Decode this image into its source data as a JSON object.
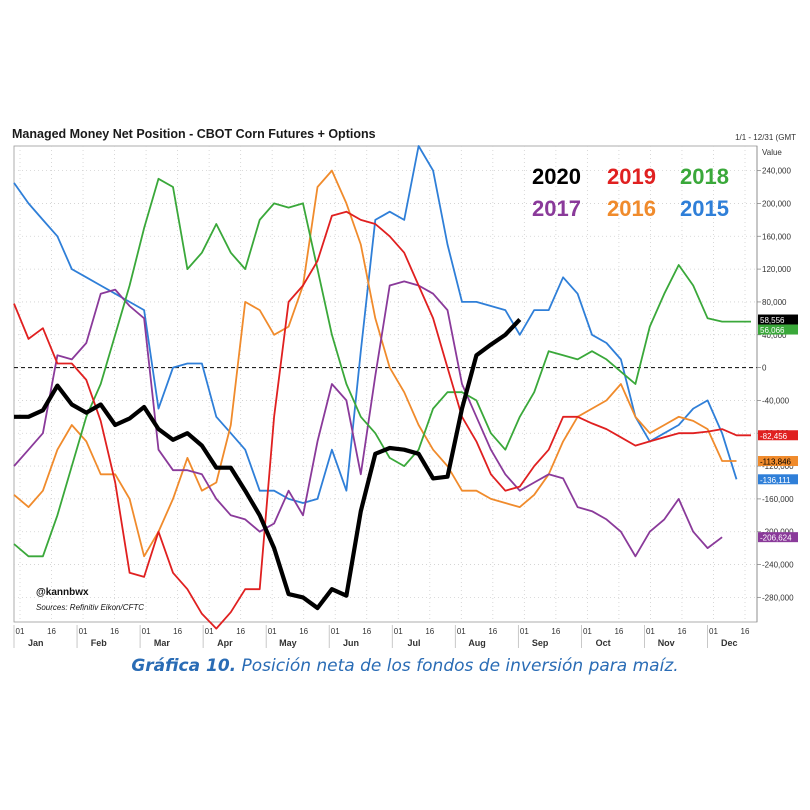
{
  "chart_data": {
    "type": "line",
    "title": "Managed Money Net Position - CBOT Corn Futures + Options",
    "date_range": "1/1 - 12/31 (GMT",
    "ylabel": "Value",
    "ylim": [
      -310000,
      270000
    ],
    "yticks": [
      240000,
      200000,
      160000,
      120000,
      80000,
      40000,
      0,
      -40000,
      -80000,
      -120000,
      -160000,
      -200000,
      -240000,
      -280000
    ],
    "ytick_labels": [
      "240,000",
      "200,000",
      "160,000",
      "120,000",
      "80,000",
      "40,000",
      "0",
      "-40,000",
      "-80,000",
      "-120,000",
      "-160,000",
      "-200,000",
      "-240,000",
      "-280,000"
    ],
    "xlim": [
      1,
      52
    ],
    "month_ticks": [
      "01",
      "16",
      "01",
      "16",
      "01",
      "16",
      "01",
      "16",
      "01",
      "16",
      "01",
      "16",
      "01",
      "16",
      "01",
      "16",
      "01",
      "16",
      "01",
      "16",
      "01",
      "16",
      "01",
      "16"
    ],
    "month_labels": [
      "Jan",
      "Feb",
      "Mar",
      "Apr",
      "May",
      "Jun",
      "Jul",
      "Aug",
      "Sep",
      "Oct",
      "Nov",
      "Dec"
    ],
    "grid": true,
    "legend": "top-right",
    "zero_line": "dashed",
    "series": [
      {
        "name": "2020",
        "color": "#000000",
        "x": [
          1,
          2,
          3,
          4,
          5,
          6,
          7,
          8,
          9,
          10,
          11,
          12,
          13,
          14,
          15,
          16,
          17,
          18,
          19,
          20,
          21,
          22,
          23,
          24,
          25,
          26,
          27,
          28,
          29,
          30,
          31,
          32,
          33,
          34,
          35,
          36,
          37
        ],
        "y": [
          -60000,
          -60000,
          -52000,
          -22000,
          -45000,
          -55000,
          -45000,
          -70000,
          -62000,
          -48000,
          -75000,
          -88000,
          -80000,
          -95000,
          -122000,
          -122000,
          -150000,
          -180000,
          -220000,
          -276000,
          -280000,
          -293000,
          -270000,
          -278000,
          -175000,
          -105000,
          -98000,
          -100000,
          -105000,
          -135000,
          -133000,
          -50000,
          15000,
          28000,
          40000,
          58556,
          null
        ]
      },
      {
        "name": "2019",
        "color": "#e02020",
        "x": [
          1,
          2,
          3,
          4,
          5,
          6,
          7,
          8,
          9,
          10,
          11,
          12,
          13,
          14,
          15,
          16,
          17,
          18,
          19,
          20,
          21,
          22,
          23,
          24,
          25,
          26,
          27,
          28,
          29,
          30,
          31,
          32,
          33,
          34,
          35,
          36,
          37,
          38,
          39,
          40,
          41,
          42,
          43,
          44,
          45,
          46,
          47,
          48,
          49,
          50,
          51,
          52
        ],
        "y": [
          78000,
          35000,
          48000,
          5000,
          5000,
          -15000,
          -65000,
          -140000,
          -250000,
          -255000,
          -200000,
          -250000,
          -270000,
          -300000,
          -318000,
          -298000,
          -270000,
          -270000,
          -60000,
          80000,
          100000,
          130000,
          185000,
          190000,
          180000,
          175000,
          160000,
          140000,
          100000,
          60000,
          0,
          -60000,
          -90000,
          -130000,
          -150000,
          -145000,
          -120000,
          -100000,
          -60000,
          -60000,
          -68000,
          -75000,
          -85000,
          -95000,
          -90000,
          -85000,
          -80000,
          -80000,
          -78000,
          -75000,
          -82456,
          -82456
        ]
      },
      {
        "name": "2018",
        "color": "#3aa83a",
        "x": [
          1,
          2,
          3,
          4,
          5,
          6,
          7,
          8,
          9,
          10,
          11,
          12,
          13,
          14,
          15,
          16,
          17,
          18,
          19,
          20,
          21,
          22,
          23,
          24,
          25,
          26,
          27,
          28,
          29,
          30,
          31,
          32,
          33,
          34,
          35,
          36,
          37,
          38,
          39,
          40,
          41,
          42,
          43,
          44,
          45,
          46,
          47,
          48,
          49,
          50,
          51,
          52
        ],
        "y": [
          -215000,
          -230000,
          -230000,
          -180000,
          -120000,
          -60000,
          -20000,
          40000,
          100000,
          170000,
          230000,
          220000,
          120000,
          140000,
          175000,
          140000,
          120000,
          180000,
          200000,
          195000,
          200000,
          120000,
          40000,
          -20000,
          -60000,
          -80000,
          -110000,
          -120000,
          -100000,
          -50000,
          -30000,
          -30000,
          -40000,
          -80000,
          -100000,
          -60000,
          -30000,
          20000,
          15000,
          10000,
          20000,
          10000,
          -5000,
          -20000,
          50000,
          90000,
          125000,
          100000,
          60000,
          56066,
          56066,
          56066
        ]
      },
      {
        "name": "2017",
        "color": "#8a3a9a",
        "x": [
          1,
          2,
          3,
          4,
          5,
          6,
          7,
          8,
          9,
          10,
          11,
          12,
          13,
          14,
          15,
          16,
          17,
          18,
          19,
          20,
          21,
          22,
          23,
          24,
          25,
          26,
          27,
          28,
          29,
          30,
          31,
          32,
          33,
          34,
          35,
          36,
          37,
          38,
          39,
          40,
          41,
          42,
          43,
          44,
          45,
          46,
          47,
          48,
          49,
          50
        ],
        "y": [
          -120000,
          -100000,
          -80000,
          15000,
          10000,
          30000,
          90000,
          95000,
          75000,
          60000,
          -100000,
          -125000,
          -125000,
          -130000,
          -160000,
          -180000,
          -185000,
          -200000,
          -190000,
          -150000,
          -180000,
          -90000,
          -20000,
          -40000,
          -130000,
          -10000,
          100000,
          105000,
          100000,
          90000,
          70000,
          -20000,
          -60000,
          -100000,
          -130000,
          -150000,
          -140000,
          -130000,
          -135000,
          -170000,
          -175000,
          -185000,
          -200000,
          -230000,
          -200000,
          -185000,
          -160000,
          -200000,
          -220000,
          -206624
        ]
      },
      {
        "name": "2016",
        "color": "#f08b2c",
        "x": [
          1,
          2,
          3,
          4,
          5,
          6,
          7,
          8,
          9,
          10,
          11,
          12,
          13,
          14,
          15,
          16,
          17,
          18,
          19,
          20,
          21,
          22,
          23,
          24,
          25,
          26,
          27,
          28,
          29,
          30,
          31,
          32,
          33,
          34,
          35,
          36,
          37,
          38,
          39,
          40,
          41,
          42,
          43,
          44,
          45,
          46,
          47,
          48,
          49,
          50,
          51
        ],
        "y": [
          -155000,
          -170000,
          -150000,
          -100000,
          -70000,
          -90000,
          -130000,
          -130000,
          -160000,
          -230000,
          -200000,
          -160000,
          -110000,
          -150000,
          -140000,
          -70000,
          80000,
          70000,
          40000,
          50000,
          100000,
          220000,
          240000,
          200000,
          150000,
          60000,
          0,
          -30000,
          -70000,
          -100000,
          -120000,
          -150000,
          -150000,
          -160000,
          -165000,
          -170000,
          -155000,
          -130000,
          -90000,
          -60000,
          -50000,
          -40000,
          -20000,
          -60000,
          -80000,
          -70000,
          -60000,
          -65000,
          -75000,
          -113846,
          -113846
        ]
      },
      {
        "name": "2015",
        "color": "#2f7fd8",
        "x": [
          1,
          2,
          3,
          4,
          5,
          6,
          7,
          8,
          9,
          10,
          11,
          12,
          13,
          14,
          15,
          16,
          17,
          18,
          19,
          20,
          21,
          22,
          23,
          24,
          25,
          26,
          27,
          28,
          29,
          30,
          31,
          32,
          33,
          34,
          35,
          36,
          37,
          38,
          39,
          40,
          41,
          42,
          43,
          44,
          45,
          46,
          47,
          48,
          49,
          50,
          51
        ],
        "y": [
          225000,
          200000,
          180000,
          160000,
          120000,
          110000,
          100000,
          90000,
          80000,
          70000,
          -50000,
          0,
          5000,
          5000,
          -60000,
          -80000,
          -100000,
          -150000,
          -150000,
          -160000,
          -165000,
          -160000,
          -100000,
          -150000,
          20000,
          180000,
          190000,
          180000,
          270000,
          240000,
          150000,
          80000,
          80000,
          75000,
          70000,
          40000,
          70000,
          70000,
          110000,
          90000,
          40000,
          30000,
          10000,
          -60000,
          -90000,
          -80000,
          -70000,
          -50000,
          -40000,
          -80000,
          -136111
        ]
      }
    ],
    "end_labels": [
      {
        "text": "58,556",
        "value": 58556,
        "bg": "#000000",
        "fg": "#ffffff"
      },
      {
        "text": "56,066",
        "value": 56066,
        "bg": "#3aa83a",
        "fg": "#ffffff"
      },
      {
        "text": "-82,456",
        "value": -82456,
        "bg": "#e02020",
        "fg": "#ffffff"
      },
      {
        "text": "-113,846",
        "value": -113846,
        "bg": "#f08b2c",
        "fg": "#000000"
      },
      {
        "text": "-136,111",
        "value": -136111,
        "bg": "#2f7fd8",
        "fg": "#ffffff"
      },
      {
        "text": "-206,624",
        "value": -206624,
        "bg": "#8a3a9a",
        "fg": "#ffffff"
      }
    ],
    "annotations": {
      "handle": "@kannbwx",
      "source": "Sources: Refinitiv Eikon/CFTC"
    }
  },
  "caption": {
    "lead": "Gráfica 10.",
    "text": " Posición neta de los fondos de inversión para maíz."
  }
}
